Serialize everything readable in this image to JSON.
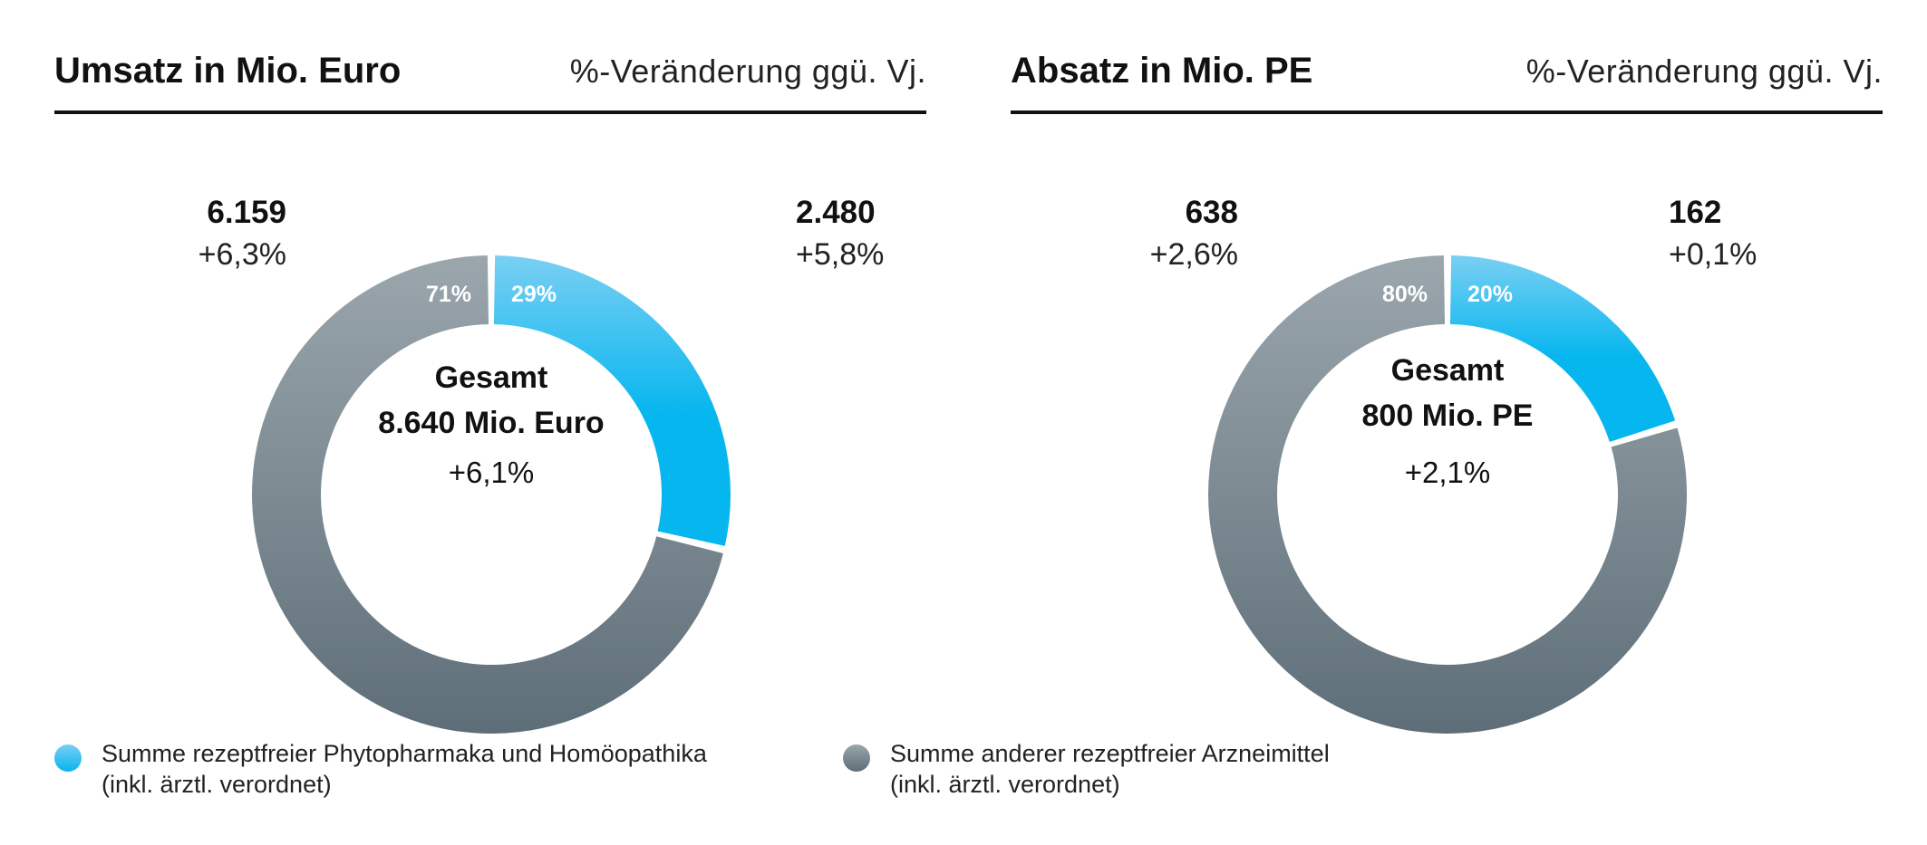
{
  "colors": {
    "phyto_top": "#7ACFF3",
    "phyto_bottom": "#05B6EF",
    "other_top": "#9BA6AD",
    "other_bottom": "#5E6E78"
  },
  "legend": [
    {
      "line1": "Summe rezeptfreier Phytopharmaka und Homöopathika",
      "line2": "(inkl. ärztl. verordnet)",
      "color": "phyto"
    },
    {
      "line1": "Summe anderer rezeptfreier Arzneimittel",
      "line2": "(inkl. ärztl. verordnet)",
      "color": "other"
    }
  ],
  "chart_data": [
    {
      "type": "pie",
      "donut": true,
      "title": "Umsatz in Mio. Euro",
      "subtitle": "%-Veränderung ggü. Vj.",
      "center": {
        "line1": "Gesamt",
        "line2": "8.640 Mio. Euro",
        "change": "+6,1%"
      },
      "total": 8640,
      "slices": [
        {
          "key": "phyto",
          "value": 2480,
          "value_label": "2.480",
          "change": "+5,8%",
          "share": 29,
          "share_label": "29%"
        },
        {
          "key": "other",
          "value": 6159,
          "value_label": "6.159",
          "change": "+6,3%",
          "share": 71,
          "share_label": "71%"
        }
      ]
    },
    {
      "type": "pie",
      "donut": true,
      "title": "Absatz in Mio. PE",
      "subtitle": "%-Veränderung ggü. Vj.",
      "center": {
        "line1": "Gesamt",
        "line2": "800 Mio. PE",
        "change": "+2,1%"
      },
      "total": 800,
      "slices": [
        {
          "key": "phyto",
          "value": 162,
          "value_label": "162",
          "change": "+0,1%",
          "share": 20,
          "share_label": "20%"
        },
        {
          "key": "other",
          "value": 638,
          "value_label": "638",
          "change": "+2,6%",
          "share": 80,
          "share_label": "80%"
        }
      ]
    }
  ]
}
